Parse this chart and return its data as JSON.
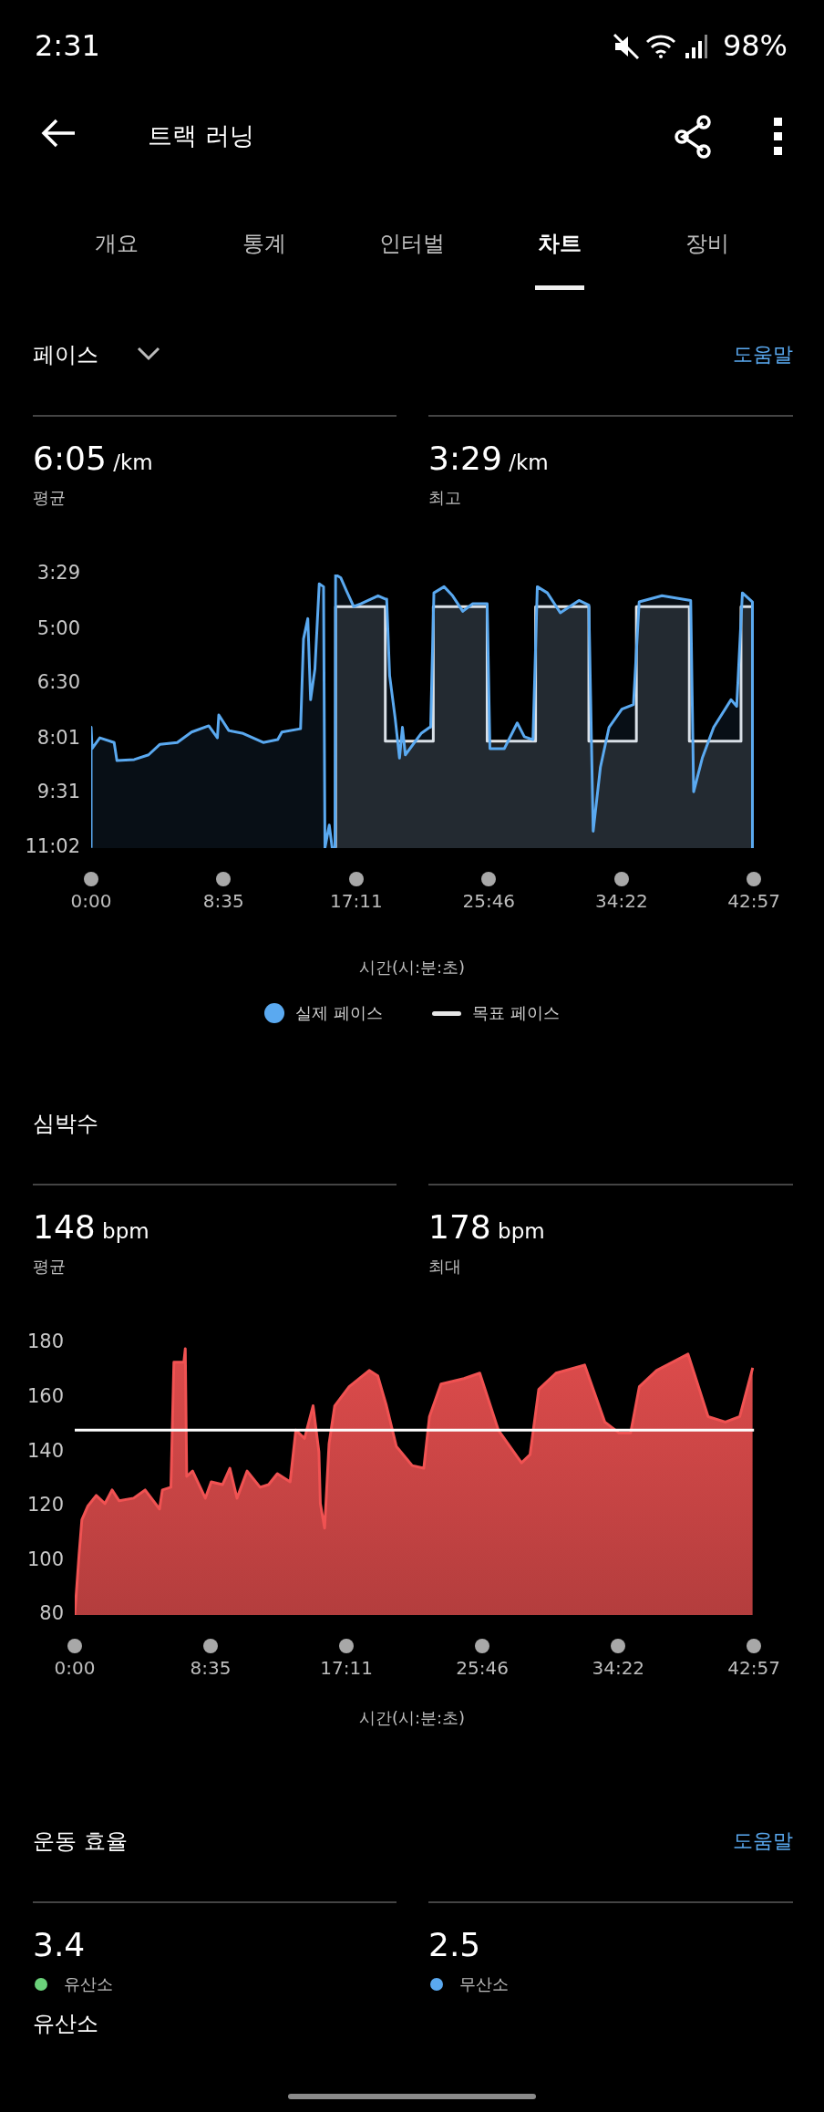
{
  "chart_data": [
    {
      "type": "other",
      "title": "트랙 러닝",
      "annotations": [
        "2:31",
        "98%",
        "개요",
        "통계",
        "인터벌",
        "차트",
        "장비"
      ]
    },
    {
      "type": "area",
      "title": "페이스",
      "subtitle": "도움말",
      "annotations": [
        "6:05 /km",
        "평균",
        "3:29 /km",
        "최고"
      ],
      "xlabel": "시간(시:분:초)",
      "legend": "bottom",
      "xlim": [
        0,
        42.95
      ],
      "xticks": [
        {
          "value": 0,
          "label": "0:00"
        },
        {
          "value": 8.583,
          "label": "8:35"
        },
        {
          "value": 17.183,
          "label": "17:11"
        },
        {
          "value": 25.767,
          "label": "25:46"
        },
        {
          "value": 34.367,
          "label": "34:22"
        },
        {
          "value": 42.95,
          "label": "42:57"
        }
      ],
      "ylim": [
        11.0333,
        3.4833
      ],
      "yticks": [
        {
          "value": 3.4833,
          "label": "3:29"
        },
        {
          "value": 5,
          "label": "5:00"
        },
        {
          "value": 6.5,
          "label": "6:30"
        },
        {
          "value": 8.0167,
          "label": "8:01"
        },
        {
          "value": 9.5167,
          "label": "9:31"
        },
        {
          "value": 11.0333,
          "label": "11:02"
        }
      ],
      "series": [
        {
          "name": "실제 페이스",
          "type": "area",
          "color": "#5aa9f0",
          "x": [
            0,
            0,
            0.06,
            0.56,
            1.49,
            1.67,
            2.79,
            3.72,
            4.46,
            5.58,
            6.51,
            7.62,
            8.18,
            8.27,
            8.92,
            9.85,
            11.15,
            12.09,
            12.36,
            13.57,
            13.76,
            14.04,
            14.22,
            14.5,
            14.78,
            15.06,
            15.15,
            15.43,
            15.62,
            15.8,
            15.84,
            16.17,
            16.55,
            17.01,
            17.47,
            18.59,
            19.06,
            19.15,
            19.34,
            19.7,
            19.98,
            20.17,
            20.36,
            21.38,
            21.94,
            22,
            22.21,
            22.87,
            23.42,
            24.08,
            24.73,
            25.66,
            25.84,
            26.77,
            27.61,
            28.07,
            28.63,
            28.91,
            29.56,
            30.4,
            31.61,
            32.25,
            32.53,
            33,
            33.56,
            34.39,
            35.14,
            35.51,
            36.99,
            38.85,
            39.04,
            39.6,
            40.34,
            41.46,
            41.83,
            42.2,
            42.85,
            42.85
          ],
          "values": [
            11.03,
            7.7,
            8.29,
            7.99,
            8.12,
            8.62,
            8.59,
            8.46,
            8.17,
            8.12,
            7.83,
            7.66,
            7.99,
            7.36,
            7.79,
            7.87,
            8.12,
            8.04,
            7.83,
            7.74,
            5.26,
            4.7,
            6.94,
            6.09,
            3.74,
            3.82,
            11.03,
            10.4,
            11.03,
            11.03,
            3.49,
            3.57,
            3.94,
            4.37,
            4.29,
            4.07,
            4.16,
            4.16,
            6.27,
            7.45,
            8.55,
            7.7,
            8.46,
            7.87,
            7.7,
            7.7,
            3.99,
            3.82,
            4.07,
            4.5,
            4.29,
            4.29,
            8.29,
            8.29,
            7.58,
            7.96,
            8.04,
            3.82,
            3.99,
            4.54,
            4.2,
            4.33,
            10.57,
            8.8,
            7.7,
            7.2,
            7.07,
            4.24,
            4.07,
            4.2,
            9.48,
            8.55,
            7.7,
            6.94,
            7.12,
            3.99,
            4.24,
            11.03
          ]
        },
        {
          "name": "목표 페이스",
          "type": "area",
          "color": "#e6e6e6",
          "x": [
            15.84,
            15.84,
            19.06,
            19.06,
            22.17,
            22.17,
            25.66,
            25.66,
            28.8,
            28.8,
            32.25,
            32.25,
            35.33,
            35.33,
            38.76,
            38.76,
            42.11,
            42.11,
            42.85,
            42.85
          ],
          "values": [
            11.03,
            4.37,
            4.37,
            8.08,
            8.08,
            4.37,
            4.37,
            8.08,
            8.08,
            4.37,
            4.37,
            8.08,
            8.08,
            4.37,
            4.37,
            8.08,
            8.08,
            4.37,
            4.37,
            11.03
          ]
        }
      ]
    },
    {
      "type": "area",
      "title": "심박수",
      "annotations": [
        "148 bpm",
        "평균",
        "178 bpm",
        "최대"
      ],
      "xlabel": "시간(시:분:초)",
      "xlim": [
        0,
        42.95
      ],
      "xticks": [
        {
          "value": 0,
          "label": "0:00"
        },
        {
          "value": 8.583,
          "label": "8:35"
        },
        {
          "value": 17.183,
          "label": "17:11"
        },
        {
          "value": 25.767,
          "label": "25:46"
        },
        {
          "value": 34.367,
          "label": "34:22"
        },
        {
          "value": 42.95,
          "label": "42:57"
        }
      ],
      "ylim": [
        80,
        180
      ],
      "yticks": [
        80,
        100,
        120,
        140,
        160,
        180
      ],
      "ref_lines": [
        {
          "axis": "y",
          "value": 148,
          "color": "#ffffff"
        }
      ],
      "series": [
        {
          "type": "area",
          "color": "#f05252",
          "x": [
            0,
            0.27,
            0.45,
            0.82,
            1.36,
            1.91,
            2.36,
            2.81,
            3.72,
            4.45,
            5.36,
            5.54,
            6.08,
            6.27,
            6.9,
            6.99,
            7.08,
            7.45,
            8.26,
            8.63,
            9.35,
            9.81,
            10.26,
            10.9,
            11.72,
            12.26,
            12.81,
            13.62,
            13.98,
            14.53,
            15.07,
            15.44,
            15.53,
            15.8,
            16.08,
            16.44,
            17.35,
            18.62,
            19.16,
            19.71,
            20.34,
            21.34,
            22.07,
            22.43,
            23.16,
            24.61,
            25.61,
            26.79,
            28.25,
            28.79,
            29.34,
            30.43,
            32.24,
            33.52,
            34.42,
            35.15,
            35.7,
            36.79,
            38.78,
            40.05,
            41.14,
            42.05,
            42.87
          ],
          "values": [
            80,
            102,
            115,
            120,
            124,
            121,
            126,
            122,
            123,
            126,
            119,
            126,
            127,
            173,
            173,
            178,
            131,
            133,
            123,
            129,
            128,
            134,
            123,
            133,
            127,
            128,
            132,
            129,
            148,
            145,
            157,
            140,
            121,
            112,
            143,
            157,
            164,
            170,
            168,
            157,
            142,
            135,
            134,
            153,
            165,
            167,
            169,
            148,
            136,
            139,
            163,
            169,
            172,
            151,
            147,
            147,
            164,
            170,
            176,
            153,
            151,
            153,
            171
          ]
        }
      ]
    },
    {
      "type": "other",
      "title": "운동 효율",
      "subtitle": "도움말",
      "annotations": [
        "3.4",
        "유산소",
        "2.5",
        "무산소",
        "유산소"
      ]
    }
  ]
}
